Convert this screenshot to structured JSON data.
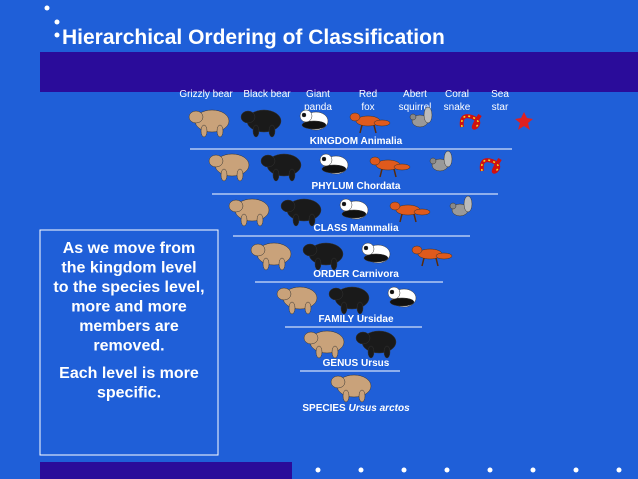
{
  "title": "Hierarchical Ordering of Classification",
  "animals": [
    "Grizzly bear",
    "Black bear",
    "Giant panda",
    "Red fox",
    "Abert squirrel",
    "Coral snake",
    "Sea star"
  ],
  "levels": [
    {
      "rank": "KINGDOM",
      "taxon": "Animalia"
    },
    {
      "rank": "PHYLUM",
      "taxon": "Chordata"
    },
    {
      "rank": "CLASS",
      "taxon": "Mammalia"
    },
    {
      "rank": "ORDER",
      "taxon": "Carnivora"
    },
    {
      "rank": "FAMILY",
      "taxon": "Ursidae"
    },
    {
      "rank": "GENUS",
      "taxon": "Ursus"
    },
    {
      "rank": "SPECIES",
      "taxon": "Ursus arctos",
      "italic": true
    }
  ],
  "note": {
    "paragraphs": [
      [
        "As we move from",
        "the kingdom level",
        "to the species level,",
        "more and more",
        "members are",
        "removed."
      ],
      [
        "Each level is more",
        "specific."
      ]
    ]
  }
}
